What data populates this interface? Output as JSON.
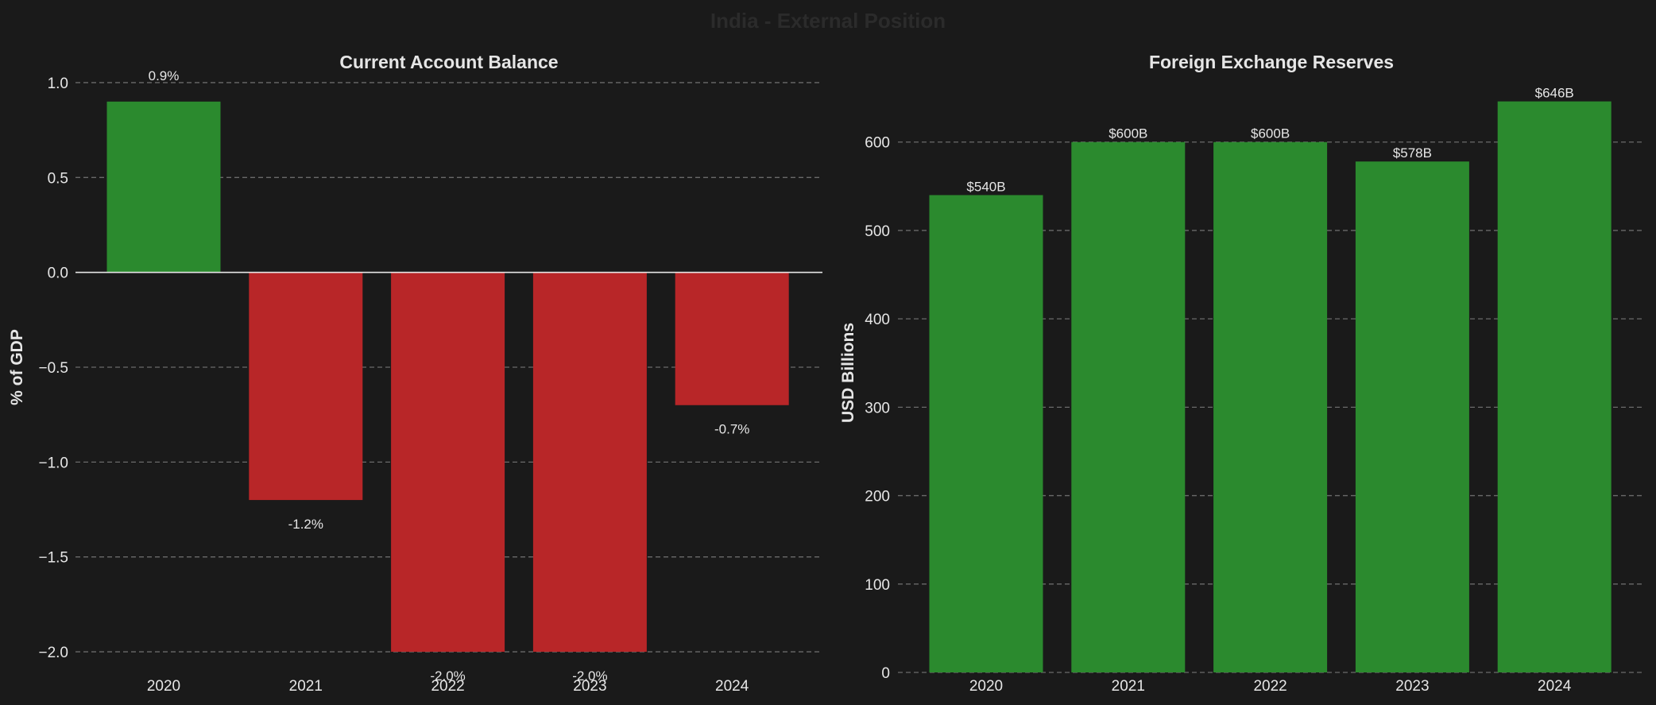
{
  "suptitle": "India - External Position",
  "colors": {
    "background": "#1a1a1a",
    "text": "#e6e6e6",
    "suptitle": "#2b2b2b",
    "positive": "#2b8a2e",
    "negative": "#b82628",
    "grid": "#6a6a6a",
    "zero_line": "#e6e6e6"
  },
  "chart_data": [
    {
      "type": "bar",
      "title": "Current Account Balance",
      "xlabel": "",
      "ylabel": "% of GDP",
      "categories": [
        "2020",
        "2021",
        "2022",
        "2023",
        "2024"
      ],
      "values": [
        0.9,
        -1.2,
        -2.0,
        -2.0,
        -0.7
      ],
      "value_labels": [
        "0.9%",
        "-1.2%",
        "-2.0%",
        "-2.0%",
        "-0.7%"
      ],
      "ylim": [
        -2.05,
        1.05
      ],
      "yticks": [
        1.0,
        0.5,
        0.0,
        -0.5,
        -1.0,
        -1.5,
        -2.0
      ],
      "ytick_labels": [
        "1.0",
        "0.5",
        "0.0",
        "−0.5",
        "−1.0",
        "−1.5",
        "−2.0"
      ],
      "grid": true
    },
    {
      "type": "bar",
      "title": "Foreign Exchange Reserves",
      "xlabel": "",
      "ylabel": "USD Billions",
      "categories": [
        "2020",
        "2021",
        "2022",
        "2023",
        "2024"
      ],
      "values": [
        540,
        600,
        600,
        578,
        646
      ],
      "value_labels": [
        "$540B",
        "$600B",
        "$600B",
        "$578B",
        "$646B"
      ],
      "ylim": [
        0,
        678
      ],
      "yticks": [
        0,
        100,
        200,
        300,
        400,
        500,
        600
      ],
      "ytick_labels": [
        "0",
        "100",
        "200",
        "300",
        "400",
        "500",
        "600"
      ],
      "grid": true
    }
  ]
}
